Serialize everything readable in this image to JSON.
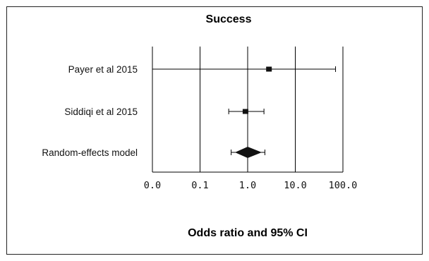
{
  "chart_data": {
    "type": "forest",
    "title": "Success",
    "xlabel": "Odds ratio and 95% CI",
    "x_scale": "log10",
    "xlim": [
      0.01,
      100
    ],
    "ticks": [
      {
        "value": 0.01,
        "label": "0.0"
      },
      {
        "value": 0.1,
        "label": "0.1"
      },
      {
        "value": 1,
        "label": "1.0"
      },
      {
        "value": 10,
        "label": "10.0"
      },
      {
        "value": 100,
        "label": "100.0"
      }
    ],
    "gridlines_at": [
      0.01,
      0.1,
      1,
      10,
      100
    ],
    "studies": [
      {
        "label": "Payer et al 2015",
        "or": 2.8,
        "ci_low": 0.01,
        "ci_high": 70
      },
      {
        "label": "Siddiqi et al 2015",
        "or": 0.9,
        "ci_low": 0.4,
        "ci_high": 2.2
      }
    ],
    "pooled": {
      "label": "Random-effects model",
      "or": 1.0,
      "ci_low": 0.45,
      "ci_high": 2.3
    }
  }
}
